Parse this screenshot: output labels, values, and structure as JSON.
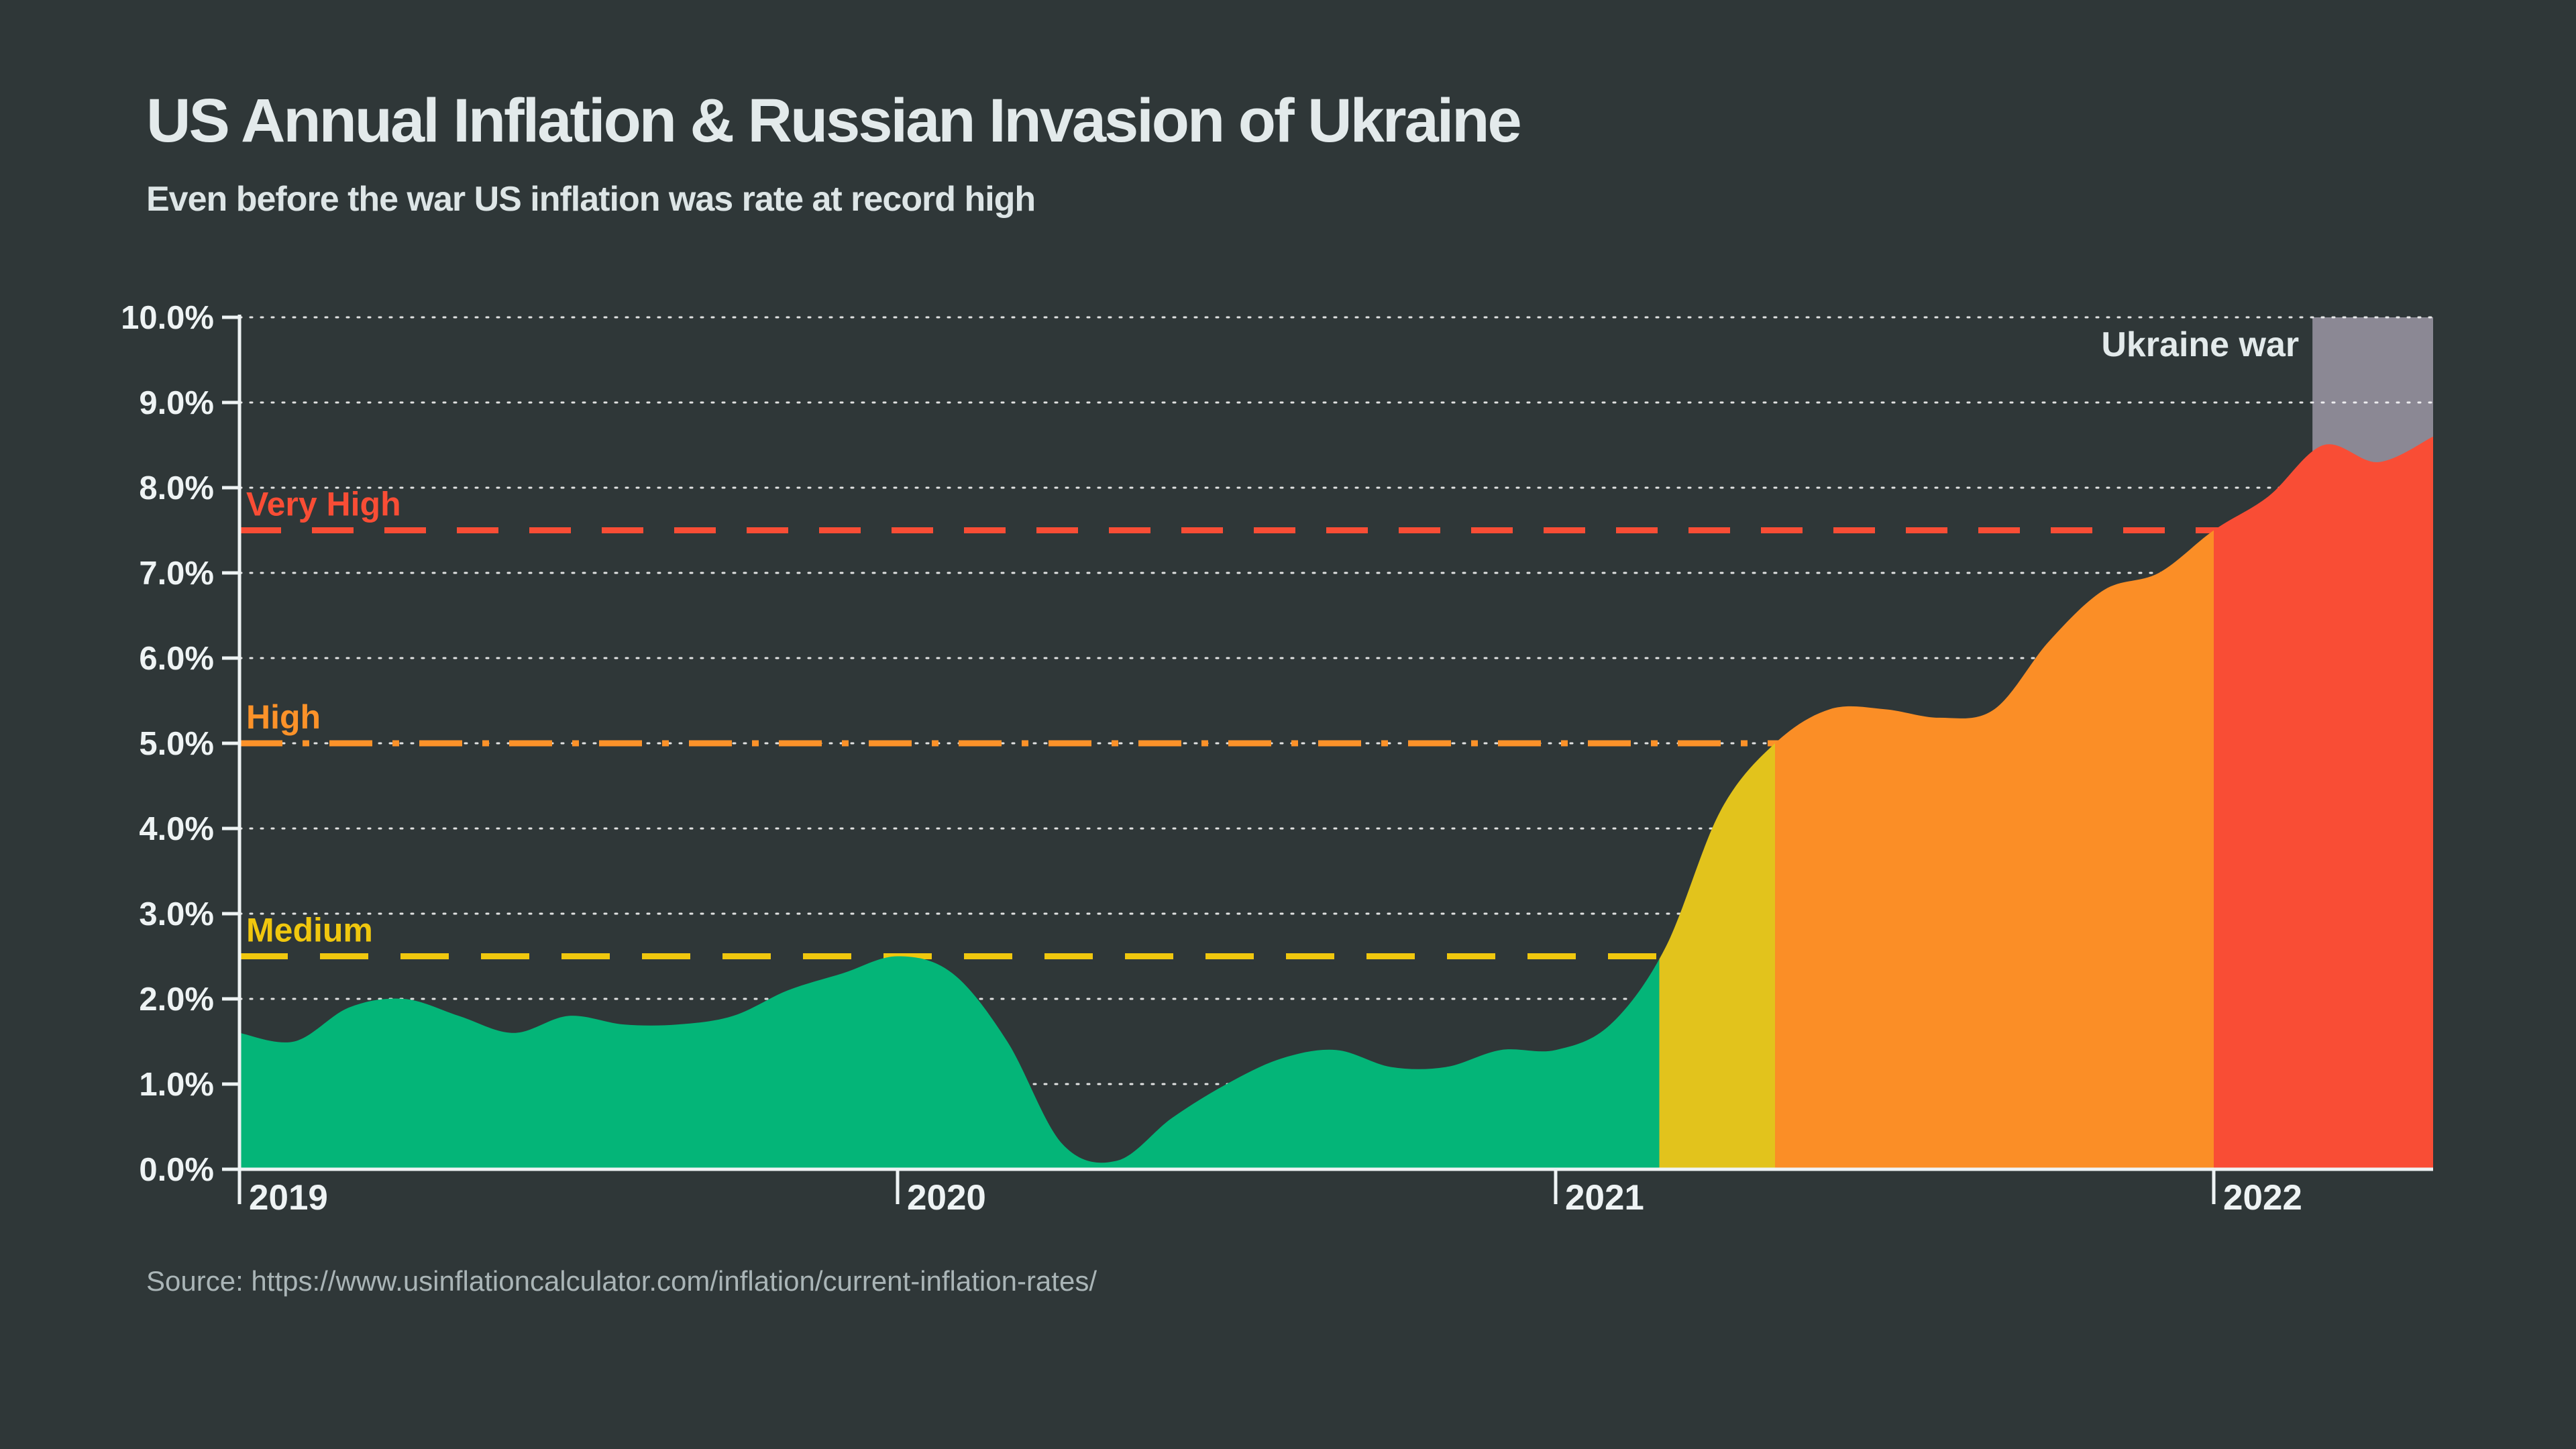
{
  "header": {
    "title": "US Annual Inflation & Russian Invasion of Ukraine",
    "subtitle": "Even before the war US inflation was rate at record high"
  },
  "footer": {
    "source": "Source: https://www.usinflationcalculator.com/inflation/current-inflation-rates/"
  },
  "colors": {
    "background": "#2f3738",
    "text_light": "#e3eaeb",
    "axis": "#eef3f4",
    "grid_dots": "#ffffff",
    "source_text": "#aab5b7",
    "war_band": "#8b8894"
  },
  "chart_data": {
    "type": "area",
    "title": "US Annual Inflation & Russian Invasion of Ukraine",
    "subtitle": "Even before the war US inflation was rate at record high",
    "ylabel": "",
    "xlabel": "",
    "unit": "percent, annual CPI inflation, monthly points",
    "x_start": "2019-01",
    "x_frequency": "monthly",
    "values": [
      1.6,
      1.5,
      1.9,
      2.0,
      1.8,
      1.6,
      1.8,
      1.7,
      1.7,
      1.8,
      2.1,
      2.3,
      2.5,
      2.3,
      1.5,
      0.3,
      0.1,
      0.6,
      1.0,
      1.3,
      1.4,
      1.2,
      1.2,
      1.4,
      1.4,
      1.7,
      2.6,
      4.2,
      5.0,
      5.4,
      5.4,
      5.3,
      5.4,
      6.2,
      6.8,
      7.0,
      7.5,
      7.9,
      8.5,
      8.3,
      8.6
    ],
    "x_tick_labels": [
      "2019",
      "2020",
      "2021",
      "2022"
    ],
    "x_tick_month_index": [
      0,
      12,
      24,
      36
    ],
    "ylim": [
      0,
      10
    ],
    "y_tick_step": 1,
    "y_tick_labels": [
      "0.0%",
      "1.0%",
      "2.0%",
      "3.0%",
      "4.0%",
      "5.0%",
      "6.0%",
      "7.0%",
      "8.0%",
      "9.0%",
      "10.0%"
    ],
    "grid": "dotted horizontal, 1% steps",
    "legend_position": "none",
    "thresholds": [
      {
        "label": "Very High",
        "value": 7.5,
        "color": "#f94d35",
        "dash": "62 46"
      },
      {
        "label": "High",
        "value": 5.0,
        "color": "#fc9229",
        "dash": "64 30 10 30"
      },
      {
        "label": "Medium",
        "value": 2.5,
        "color": "#f0c70e",
        "dash": "72 48"
      }
    ],
    "color_segments": [
      {
        "name": "low-green",
        "from_month": 0,
        "to_month": 25.89,
        "color": "#04b578"
      },
      {
        "name": "medium-yellow",
        "from_month": 25.89,
        "to_month": 28,
        "color": "#e2c31c"
      },
      {
        "name": "high-orange",
        "from_month": 28,
        "to_month": 36,
        "color": "#fb8e26"
      },
      {
        "name": "very-high-red",
        "from_month": 36,
        "to_month": 40,
        "color": "#f94d35"
      }
    ],
    "annotation": {
      "label": "Ukraine war",
      "from_month": 37.8,
      "to_month": 40,
      "color": "#8b8894"
    }
  }
}
